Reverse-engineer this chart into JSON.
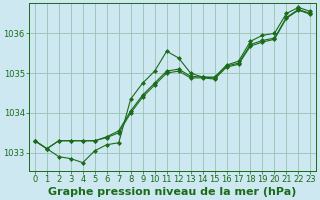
{
  "title": "Graphe pression niveau de la mer (hPa)",
  "bg_color": "#cde8f0",
  "grid_color": "#9fc8bb",
  "line_color": "#1a6b1a",
  "marker_color": "#1a6b1a",
  "xlim": [
    -0.5,
    23.5
  ],
  "ylim": [
    1032.55,
    1036.75
  ],
  "yticks": [
    1033,
    1034,
    1035,
    1036
  ],
  "xticks": [
    0,
    1,
    2,
    3,
    4,
    5,
    6,
    7,
    8,
    9,
    10,
    11,
    12,
    13,
    14,
    15,
    16,
    17,
    18,
    19,
    20,
    21,
    22,
    23
  ],
  "series": [
    [
      1033.3,
      1033.1,
      1032.9,
      1032.85,
      1032.75,
      1033.05,
      1033.2,
      1033.25,
      1034.35,
      1034.75,
      1035.05,
      1035.55,
      1035.38,
      1035.0,
      1034.9,
      1034.9,
      1035.2,
      1035.3,
      1035.8,
      1035.95,
      1036.0,
      1036.5,
      1036.65,
      1036.55
    ],
    [
      1033.3,
      1033.15,
      1033.35,
      1033.3,
      1033.3,
      1033.3,
      1033.4,
      1033.55,
      1034.05,
      1034.45,
      1034.75,
      1035.05,
      1035.1,
      1034.92,
      1034.9,
      1034.88,
      1035.18,
      1035.25,
      1035.72,
      1035.82,
      1035.88,
      1036.4,
      1036.6,
      1036.5
    ],
    [
      1033.3,
      1033.15,
      1033.35,
      1033.3,
      1033.3,
      1033.3,
      1033.4,
      1033.55,
      1034.05,
      1034.45,
      1034.75,
      1035.05,
      1035.1,
      1034.92,
      1034.9,
      1034.88,
      1035.18,
      1035.25,
      1035.72,
      1035.82,
      1035.88,
      1036.4,
      1036.6,
      1036.5
    ]
  ],
  "title_fontsize": 8,
  "tick_fontsize": 6,
  "tick_color": "#1a6b1a",
  "axis_color": "#1a6b1a",
  "label_color": "#1a6b1a"
}
